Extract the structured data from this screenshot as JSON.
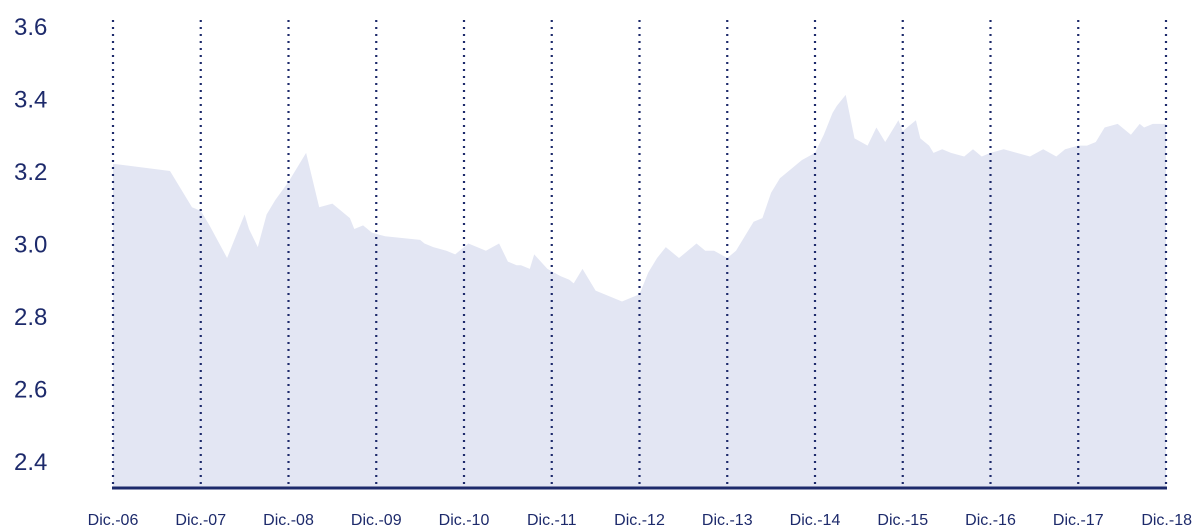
{
  "chart_data": {
    "type": "area",
    "title": "",
    "xlabel": "",
    "ylabel": "",
    "ylim": [
      2.3,
      3.6
    ],
    "y_ticks": [
      "3.6",
      "3.4",
      "3.2",
      "3.0",
      "2.8",
      "2.6",
      "2.4"
    ],
    "y_tick_values": [
      3.6,
      3.4,
      3.2,
      3.0,
      2.8,
      2.6,
      2.4
    ],
    "x_ticks": [
      "Dic.-06",
      "Dic.-07",
      "Dic.-08",
      "Dic.-09",
      "Dic.-10",
      "Dic.-11",
      "Dic.-12",
      "Dic.-13",
      "Dic.-14",
      "Dic.-15",
      "Dic.-16",
      "Dic.-17",
      "Dic.-18"
    ],
    "grid": "vertical dotted lines at each year",
    "legend": "none",
    "colors": {
      "fill": "#e3e6f3",
      "axis": "#1d2a6b",
      "text": "#1d2a6b"
    },
    "series": [
      {
        "x": [
          0.0,
          0.65,
          0.75,
          0.9,
          1.0,
          1.1,
          1.3,
          1.4,
          1.5,
          1.55,
          1.65,
          1.75,
          1.85,
          2.0,
          2.1,
          2.2,
          2.35,
          2.5,
          2.7,
          2.75,
          2.85,
          2.95,
          3.1,
          3.5,
          3.55,
          3.65,
          3.8,
          3.9,
          3.95,
          4.05,
          4.15,
          4.25,
          4.4,
          4.5,
          4.6,
          4.65,
          4.75,
          4.8,
          4.95,
          5.1,
          5.2,
          5.25,
          5.35,
          5.5,
          5.8,
          5.9,
          6.0,
          6.1,
          6.2,
          6.3,
          6.4,
          6.45,
          6.55,
          6.65,
          6.75,
          6.85,
          7.0,
          7.1,
          7.2,
          7.3,
          7.4,
          7.5,
          7.6,
          7.7,
          7.85,
          8.0,
          8.1,
          8.2,
          8.25,
          8.35,
          8.45,
          8.6,
          8.7,
          8.8,
          8.95,
          9.0,
          9.05,
          9.15,
          9.2,
          9.3,
          9.35,
          9.45,
          9.55,
          9.7,
          9.8,
          9.9,
          10.0,
          10.15,
          10.3,
          10.45,
          10.6,
          10.75,
          10.85,
          11.0,
          11.1,
          11.2,
          11.3,
          11.45,
          11.5,
          11.6,
          11.7,
          11.75,
          11.85,
          11.95,
          12.0
        ],
        "values": [
          3.22,
          3.2,
          3.16,
          3.1,
          3.09,
          3.05,
          2.96,
          3.02,
          3.08,
          3.04,
          2.99,
          3.08,
          3.12,
          3.17,
          3.21,
          3.25,
          3.1,
          3.11,
          3.07,
          3.04,
          3.05,
          3.03,
          3.02,
          3.01,
          3.0,
          2.99,
          2.98,
          2.97,
          2.98,
          3.0,
          2.99,
          2.98,
          3.0,
          2.95,
          2.94,
          2.94,
          2.93,
          2.97,
          2.93,
          2.91,
          2.9,
          2.89,
          2.93,
          2.87,
          2.84,
          2.85,
          2.86,
          2.92,
          2.96,
          2.99,
          2.97,
          2.96,
          2.98,
          3.0,
          2.98,
          2.98,
          2.96,
          2.98,
          3.02,
          3.06,
          3.07,
          3.14,
          3.18,
          3.2,
          3.23,
          3.25,
          3.3,
          3.36,
          3.38,
          3.41,
          3.29,
          3.27,
          3.32,
          3.28,
          3.34,
          3.31,
          3.32,
          3.34,
          3.29,
          3.27,
          3.25,
          3.26,
          3.25,
          3.24,
          3.26,
          3.24,
          3.25,
          3.26,
          3.25,
          3.24,
          3.26,
          3.24,
          3.26,
          3.27,
          3.27,
          3.28,
          3.32,
          3.33,
          3.32,
          3.3,
          3.33,
          3.32,
          3.33,
          3.33,
          3.33
        ]
      }
    ]
  }
}
